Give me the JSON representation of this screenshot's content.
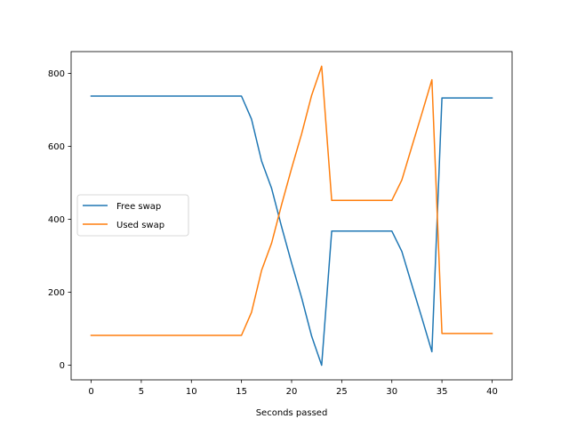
{
  "chart_data": {
    "type": "line",
    "title": "",
    "xlabel": "Seconds passed",
    "ylabel": "",
    "xlim": [
      -2,
      42
    ],
    "ylim": [
      -40,
      860
    ],
    "xticks": [
      0,
      5,
      10,
      15,
      20,
      25,
      30,
      35,
      40
    ],
    "yticks": [
      0,
      200,
      400,
      600,
      800
    ],
    "grid": false,
    "legend_position": "center-left",
    "series": [
      {
        "name": "Free swap",
        "color": "#1f77b4",
        "x": [
          0,
          15,
          16,
          17,
          18,
          19,
          20,
          21,
          22,
          23,
          24,
          30,
          31,
          32,
          33,
          34,
          35,
          40
        ],
        "y": [
          738,
          738,
          675,
          560,
          485,
          380,
          280,
          185,
          80,
          0,
          368,
          368,
          312,
          220,
          130,
          37,
          733,
          733
        ]
      },
      {
        "name": "Used swap",
        "color": "#ff7f0e",
        "x": [
          0,
          15,
          16,
          17,
          18,
          19,
          20,
          21,
          22,
          23,
          24,
          30,
          31,
          32,
          33,
          34,
          35,
          40
        ],
        "y": [
          82,
          82,
          145,
          260,
          335,
          440,
          540,
          635,
          740,
          820,
          452,
          452,
          508,
          600,
          690,
          783,
          87,
          87
        ]
      }
    ]
  }
}
